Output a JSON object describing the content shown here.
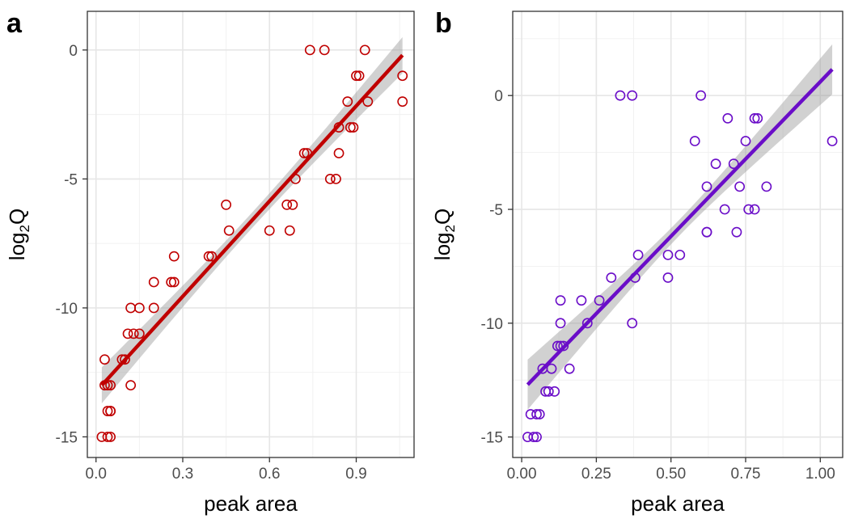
{
  "chart_data": [
    {
      "panel": "a",
      "type": "scatter",
      "title": "",
      "xlabel": "peak area",
      "ylabel_main": "log",
      "ylabel_sub": "2",
      "ylabel_tail": "Q",
      "xlim": [
        -0.03,
        1.1
      ],
      "ylim": [
        -15.8,
        1.5
      ],
      "xticks": [
        0.0,
        0.3,
        0.6,
        0.9
      ],
      "xtick_labels": [
        "0.0",
        "0.3",
        "0.6",
        "0.9"
      ],
      "yticks": [
        0,
        -5,
        -10,
        -15
      ],
      "ytick_labels": [
        "0",
        "-5",
        "-10",
        "-15"
      ],
      "grid": true,
      "color": "#c00000",
      "fit": {
        "x": [
          0.02,
          1.06
        ],
        "y": [
          -13.0,
          -0.2
        ],
        "band_halfwidth_ends": 0.7,
        "band_halfwidth_mid": 0.3
      },
      "points": [
        [
          0.02,
          -15
        ],
        [
          0.04,
          -15
        ],
        [
          0.05,
          -15
        ],
        [
          0.04,
          -14
        ],
        [
          0.05,
          -14
        ],
        [
          0.05,
          -14
        ],
        [
          0.03,
          -13
        ],
        [
          0.04,
          -13
        ],
        [
          0.05,
          -13
        ],
        [
          0.12,
          -13
        ],
        [
          0.03,
          -12
        ],
        [
          0.09,
          -12
        ],
        [
          0.1,
          -12
        ],
        [
          0.11,
          -11
        ],
        [
          0.13,
          -11
        ],
        [
          0.15,
          -11
        ],
        [
          0.12,
          -10
        ],
        [
          0.15,
          -10
        ],
        [
          0.2,
          -10
        ],
        [
          0.2,
          -9
        ],
        [
          0.26,
          -9
        ],
        [
          0.27,
          -9
        ],
        [
          0.27,
          -8
        ],
        [
          0.39,
          -8
        ],
        [
          0.4,
          -8
        ],
        [
          0.45,
          -6
        ],
        [
          0.46,
          -7
        ],
        [
          0.6,
          -7
        ],
        [
          0.66,
          -6
        ],
        [
          0.67,
          -7
        ],
        [
          0.68,
          -6
        ],
        [
          0.69,
          -5
        ],
        [
          0.72,
          -4
        ],
        [
          0.73,
          -4
        ],
        [
          0.81,
          -5
        ],
        [
          0.83,
          -5
        ],
        [
          0.84,
          -4
        ],
        [
          0.84,
          -3
        ],
        [
          0.87,
          -2
        ],
        [
          0.88,
          -3
        ],
        [
          0.89,
          -3
        ],
        [
          0.9,
          -1
        ],
        [
          0.91,
          -1
        ],
        [
          0.94,
          -2
        ],
        [
          0.74,
          0
        ],
        [
          0.79,
          0
        ],
        [
          0.93,
          0
        ],
        [
          1.06,
          -1
        ],
        [
          1.06,
          -2
        ]
      ]
    },
    {
      "panel": "b",
      "type": "scatter",
      "title": "",
      "xlabel": "peak area",
      "ylabel_main": "log",
      "ylabel_sub": "2",
      "ylabel_tail": "Q",
      "xlim": [
        -0.03,
        1.075
      ],
      "ylim": [
        -15.9,
        3.7
      ],
      "xticks": [
        0.0,
        0.25,
        0.5,
        0.75,
        1.0
      ],
      "xtick_labels": [
        "0.00",
        "0.25",
        "0.50",
        "0.75",
        "1.00"
      ],
      "yticks": [
        0,
        -5,
        -10,
        -15
      ],
      "ytick_labels": [
        "0",
        "-5",
        "-10",
        "-15"
      ],
      "grid": true,
      "color": "#6a0dc8",
      "fit": {
        "x": [
          0.02,
          1.04
        ],
        "y": [
          -12.7,
          1.15
        ],
        "band_halfwidth_ends": 1.1,
        "band_halfwidth_mid": 0.35
      },
      "points": [
        [
          0.02,
          -15
        ],
        [
          0.04,
          -15
        ],
        [
          0.05,
          -15
        ],
        [
          0.03,
          -14
        ],
        [
          0.05,
          -14
        ],
        [
          0.06,
          -14
        ],
        [
          0.07,
          -12
        ],
        [
          0.08,
          -13
        ],
        [
          0.09,
          -13
        ],
        [
          0.1,
          -12
        ],
        [
          0.11,
          -13
        ],
        [
          0.12,
          -11
        ],
        [
          0.13,
          -11
        ],
        [
          0.14,
          -11
        ],
        [
          0.13,
          -10
        ],
        [
          0.13,
          -9
        ],
        [
          0.16,
          -12
        ],
        [
          0.2,
          -9
        ],
        [
          0.22,
          -10
        ],
        [
          0.26,
          -9
        ],
        [
          0.3,
          -8
        ],
        [
          0.37,
          -10
        ],
        [
          0.38,
          -8
        ],
        [
          0.39,
          -7
        ],
        [
          0.33,
          0
        ],
        [
          0.37,
          0
        ],
        [
          0.49,
          -7
        ],
        [
          0.49,
          -8
        ],
        [
          0.53,
          -7
        ],
        [
          0.58,
          -2
        ],
        [
          0.6,
          0
        ],
        [
          0.62,
          -6
        ],
        [
          0.62,
          -6
        ],
        [
          0.62,
          -4
        ],
        [
          0.65,
          -3
        ],
        [
          0.68,
          -5
        ],
        [
          0.69,
          -1
        ],
        [
          0.71,
          -3
        ],
        [
          0.72,
          -6
        ],
        [
          0.73,
          -4
        ],
        [
          0.75,
          -2
        ],
        [
          0.76,
          -5
        ],
        [
          0.78,
          -5
        ],
        [
          0.78,
          -1
        ],
        [
          0.79,
          -1
        ],
        [
          0.82,
          -4
        ],
        [
          1.04,
          -2
        ]
      ]
    }
  ]
}
